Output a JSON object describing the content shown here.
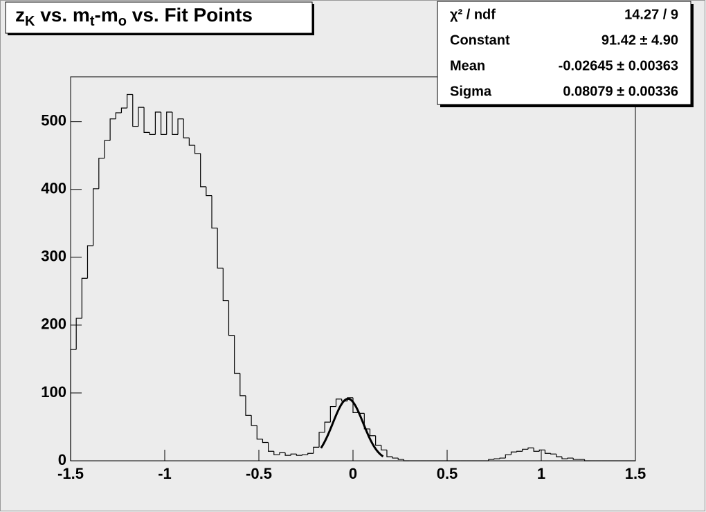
{
  "chart_data": {
    "type": "histogram",
    "title_parts": [
      {
        "text": "z"
      },
      {
        "text": "K",
        "sub": true
      },
      {
        "text": " vs. m"
      },
      {
        "text": "t",
        "sub": true
      },
      {
        "text": "-m"
      },
      {
        "text": "o",
        "sub": true
      },
      {
        "text": " vs. Fit Points"
      }
    ],
    "bins": [
      -1.5,
      -1.47,
      -1.44,
      -1.41,
      -1.38,
      -1.35,
      -1.32,
      -1.29,
      -1.26,
      -1.23,
      -1.2,
      -1.17,
      -1.14,
      -1.11,
      -1.08,
      -1.05,
      -1.02,
      -0.99,
      -0.96,
      -0.93,
      -0.9,
      -0.87,
      -0.84,
      -0.81,
      -0.78,
      -0.75,
      -0.72,
      -0.69,
      -0.66,
      -0.63,
      -0.6,
      -0.57,
      -0.54,
      -0.51,
      -0.48,
      -0.45,
      -0.42,
      -0.39,
      -0.36,
      -0.33,
      -0.3,
      -0.27,
      -0.24,
      -0.21,
      -0.18,
      -0.15,
      -0.12,
      -0.09,
      -0.06,
      -0.03,
      0,
      0.03,
      0.06,
      0.09,
      0.12,
      0.15,
      0.18,
      0.21,
      0.24,
      0.27,
      0.3,
      0.33,
      0.36,
      0.39,
      0.42,
      0.45,
      0.48,
      0.51,
      0.54,
      0.57,
      0.6,
      0.63,
      0.66,
      0.69,
      0.72,
      0.75,
      0.78,
      0.81,
      0.84,
      0.87,
      0.9,
      0.93,
      0.96,
      0.99,
      1.02,
      1.05,
      1.08,
      1.11,
      1.14,
      1.17,
      1.2,
      1.23,
      1.26,
      1.29,
      1.32,
      1.35,
      1.38,
      1.41,
      1.44,
      1.47,
      1.5
    ],
    "counts": [
      164,
      210,
      269,
      317,
      401,
      446,
      472,
      504,
      513,
      520,
      540,
      493,
      521,
      484,
      481,
      514,
      481,
      514,
      481,
      504,
      476,
      465,
      453,
      404,
      391,
      343,
      284,
      236,
      185,
      129,
      96,
      67,
      52,
      32,
      27,
      14,
      9,
      12,
      8,
      10,
      8,
      9,
      11,
      20,
      42,
      57,
      80,
      91,
      88,
      93,
      71,
      70,
      47,
      37,
      23,
      16,
      6,
      4,
      2,
      0,
      0,
      0,
      0,
      0,
      0,
      0,
      0,
      0,
      0,
      0,
      0,
      0,
      0,
      0,
      2,
      3,
      4,
      9,
      13,
      14,
      17,
      19,
      14,
      16,
      11,
      10,
      6,
      3,
      4,
      2,
      2,
      0,
      0,
      0,
      0,
      0,
      0,
      0,
      0,
      0
    ],
    "color": "#000000",
    "fit": {
      "constant": 91.42,
      "mean": -0.02645,
      "sigma": 0.08079,
      "xlim": [
        -0.17,
        0.16
      ],
      "color": "#000000"
    },
    "xlim": [
      -1.5,
      1.5
    ],
    "xticks": [
      -1.5,
      -1,
      -0.5,
      0,
      0.5,
      1,
      1.5
    ],
    "ylim": [
      0,
      566
    ],
    "yticks": [
      0,
      100,
      200,
      300,
      400,
      500
    ],
    "stats": [
      {
        "label": "χ² / ndf",
        "value": "14.27 / 9"
      },
      {
        "label": "Constant",
        "value": "91.42 ± 4.90"
      },
      {
        "label": "Mean",
        "value": "-0.02645 ± 0.00363"
      },
      {
        "label": "Sigma",
        "value": "0.08079 ± 0.00336"
      }
    ]
  }
}
